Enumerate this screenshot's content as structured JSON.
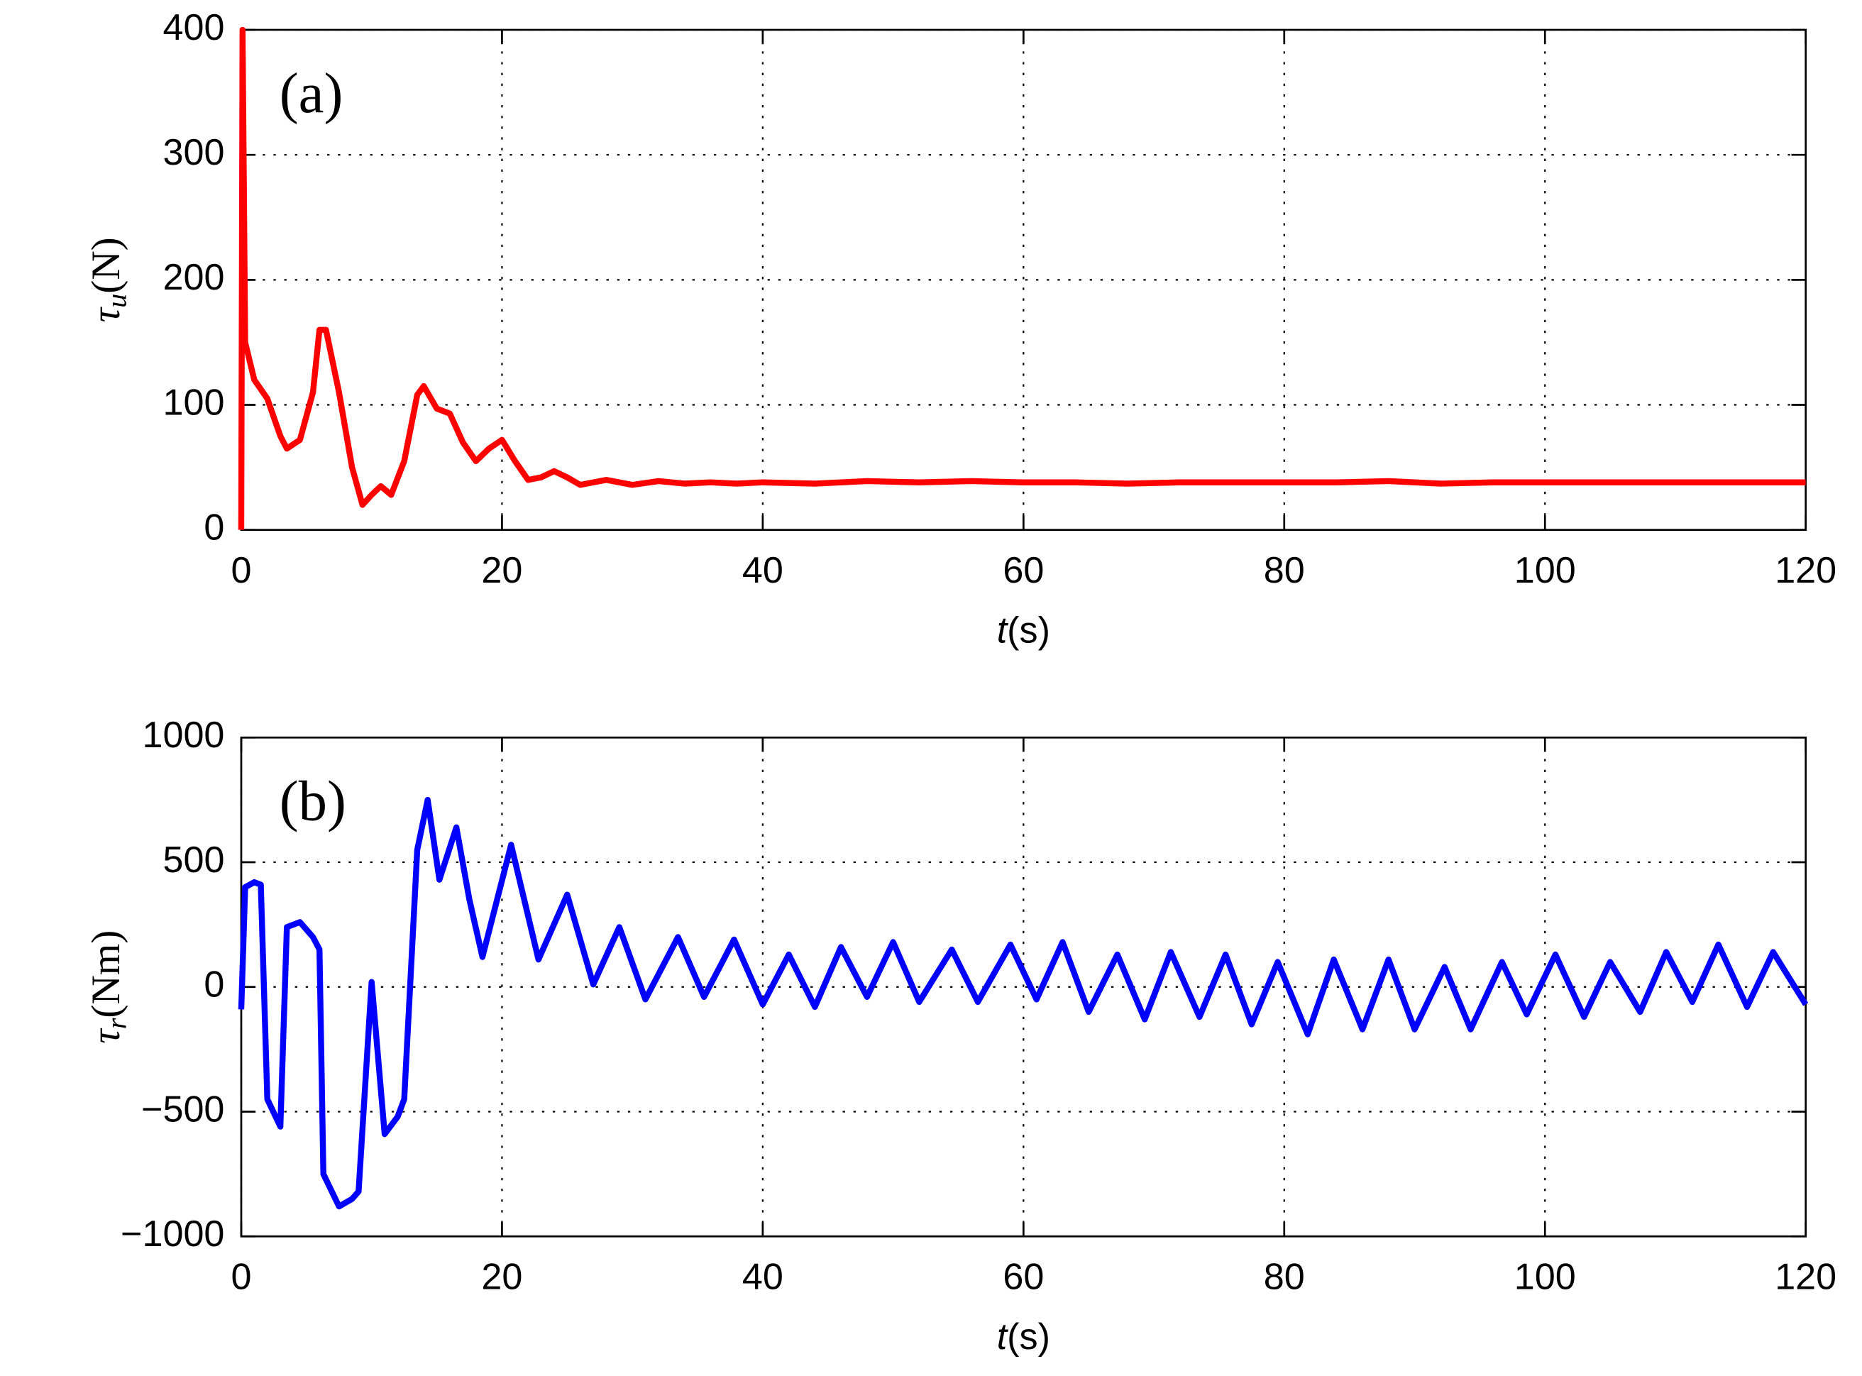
{
  "chart_data": [
    {
      "type": "line",
      "annotation": "(a)",
      "ylabel": {
        "base": "τ",
        "sub": "u",
        "rest": "(N)"
      },
      "xlabel": {
        "var": "t",
        "rest": "(s)"
      },
      "xlim": [
        0,
        120
      ],
      "xticks": [
        0,
        20,
        40,
        60,
        80,
        100,
        120
      ],
      "ylim": [
        0,
        400
      ],
      "yticks": [
        0,
        100,
        200,
        300,
        400
      ],
      "grid": true,
      "series": [
        {
          "color": "#ff0000",
          "x": [
            0,
            0.1,
            0.3,
            1,
            2,
            3,
            3.5,
            4.5,
            5.5,
            6,
            6.5,
            7.5,
            8.5,
            9.3,
            10,
            10.7,
            11.5,
            12.5,
            13.5,
            14,
            15,
            16,
            17,
            18,
            19,
            20,
            21,
            22,
            23,
            24,
            25,
            26,
            28,
            30,
            32,
            34,
            36,
            38,
            40,
            44,
            48,
            52,
            56,
            60,
            64,
            68,
            72,
            76,
            80,
            84,
            88,
            92,
            96,
            100,
            104,
            108,
            112,
            116,
            120
          ],
          "values": [
            0,
            400,
            150,
            120,
            105,
            75,
            65,
            72,
            110,
            160,
            160,
            110,
            50,
            20,
            28,
            35,
            28,
            55,
            108,
            115,
            97,
            93,
            70,
            55,
            65,
            72,
            55,
            40,
            42,
            47,
            42,
            36,
            40,
            36,
            39,
            37,
            38,
            37,
            38,
            37,
            39,
            38,
            39,
            38,
            38,
            37,
            38,
            38,
            38,
            38,
            39,
            37,
            38,
            38,
            38,
            38,
            38,
            38,
            38
          ]
        }
      ]
    },
    {
      "type": "line",
      "annotation": "(b)",
      "ylabel": {
        "base": "τ",
        "sub": "r",
        "rest": "(Nm)"
      },
      "xlabel": {
        "var": "t",
        "rest": "(s)"
      },
      "xlim": [
        0,
        120
      ],
      "xticks": [
        0,
        20,
        40,
        60,
        80,
        100,
        120
      ],
      "ylim": [
        -1000,
        1000
      ],
      "yticks": [
        {
          "value": -1000,
          "label": "−1000"
        },
        {
          "value": -500,
          "label": "−500"
        },
        0,
        500,
        1000
      ],
      "grid": true,
      "series": [
        {
          "color": "#0000ff",
          "x": [
            0,
            0.3,
            1,
            1.5,
            2,
            3,
            3.5,
            4.5,
            5.5,
            6,
            6.3,
            7.5,
            8.5,
            9,
            10,
            11,
            12,
            12.5,
            13.5,
            14.3,
            15.2,
            16.5,
            17.5,
            18.5,
            20.7,
            22.8,
            25,
            27,
            29,
            31,
            33.5,
            35.5,
            37.8,
            40,
            42,
            44,
            46,
            48,
            50,
            52,
            54.5,
            56.5,
            59,
            61,
            63,
            65,
            67.2,
            69.3,
            71.3,
            73.5,
            75.5,
            77.5,
            79.5,
            81.8,
            83.8,
            86,
            88,
            90,
            92.3,
            94.3,
            96.7,
            98.6,
            100.8,
            103,
            105,
            107.3,
            109.3,
            111.3,
            113.3,
            115.5,
            117.5,
            120
          ],
          "values": [
            -90,
            400,
            420,
            410,
            -450,
            -560,
            240,
            260,
            200,
            150,
            -750,
            -880,
            -850,
            -820,
            20,
            -590,
            -520,
            -450,
            550,
            750,
            430,
            640,
            350,
            120,
            570,
            110,
            370,
            10,
            240,
            -50,
            200,
            -40,
            190,
            -70,
            130,
            -80,
            160,
            -40,
            180,
            -60,
            150,
            -60,
            170,
            -50,
            180,
            -100,
            130,
            -130,
            140,
            -120,
            130,
            -150,
            100,
            -190,
            110,
            -170,
            110,
            -170,
            80,
            -170,
            100,
            -110,
            130,
            -120,
            100,
            -100,
            140,
            -60,
            170,
            -80,
            140,
            -70
          ]
        }
      ]
    }
  ]
}
